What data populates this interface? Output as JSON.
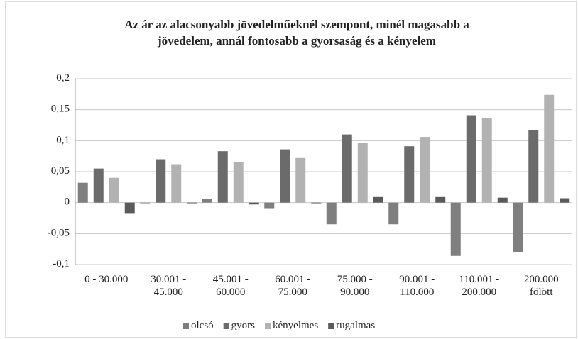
{
  "chart_data": {
    "type": "bar",
    "title": "Az ár az alacsonyabb jövedelműeknél szempont, minél magasabb a\njövedelem, annál fontosabb a gyorsaság és a kényelem",
    "categories": [
      "0 - 30.000",
      "30.001 -\n45.000",
      "45.001 -\n60.000",
      "60.001 -\n75.000",
      "75.000 -\n90.000",
      "90.001 -\n110.000",
      "110.001 -\n200.000",
      "200.000\nfölött"
    ],
    "series": [
      {
        "name": "olcsó",
        "color": "#7f7f7f",
        "values": [
          0.032,
          -0.001,
          0.006,
          -0.009,
          -0.035,
          -0.035,
          -0.086,
          -0.08
        ]
      },
      {
        "name": "gyors",
        "color": "#6b6b6b",
        "values": [
          0.055,
          0.07,
          0.083,
          0.086,
          0.11,
          0.091,
          0.141,
          0.117
        ]
      },
      {
        "name": "kényelmes",
        "color": "#b2b2b2",
        "values": [
          0.04,
          0.062,
          0.065,
          0.072,
          0.097,
          0.106,
          0.137,
          0.174
        ]
      },
      {
        "name": "rugalmas",
        "color": "#5a5a5a",
        "values": [
          -0.018,
          -0.001,
          -0.003,
          -0.001,
          0.009,
          0.009,
          0.008,
          0.007
        ]
      }
    ],
    "ylim": [
      -0.1,
      0.2
    ],
    "yticks": [
      {
        "value": -0.1,
        "label": "-0,1"
      },
      {
        "value": -0.05,
        "label": "-0,05"
      },
      0,
      {
        "value": 0.05,
        "label": "0,05"
      },
      {
        "value": 0.1,
        "label": "0,1"
      },
      {
        "value": 0.15,
        "label": "0,15"
      },
      {
        "value": 0.2,
        "label": "0,2"
      }
    ],
    "grid": true,
    "legend": "bottom"
  }
}
